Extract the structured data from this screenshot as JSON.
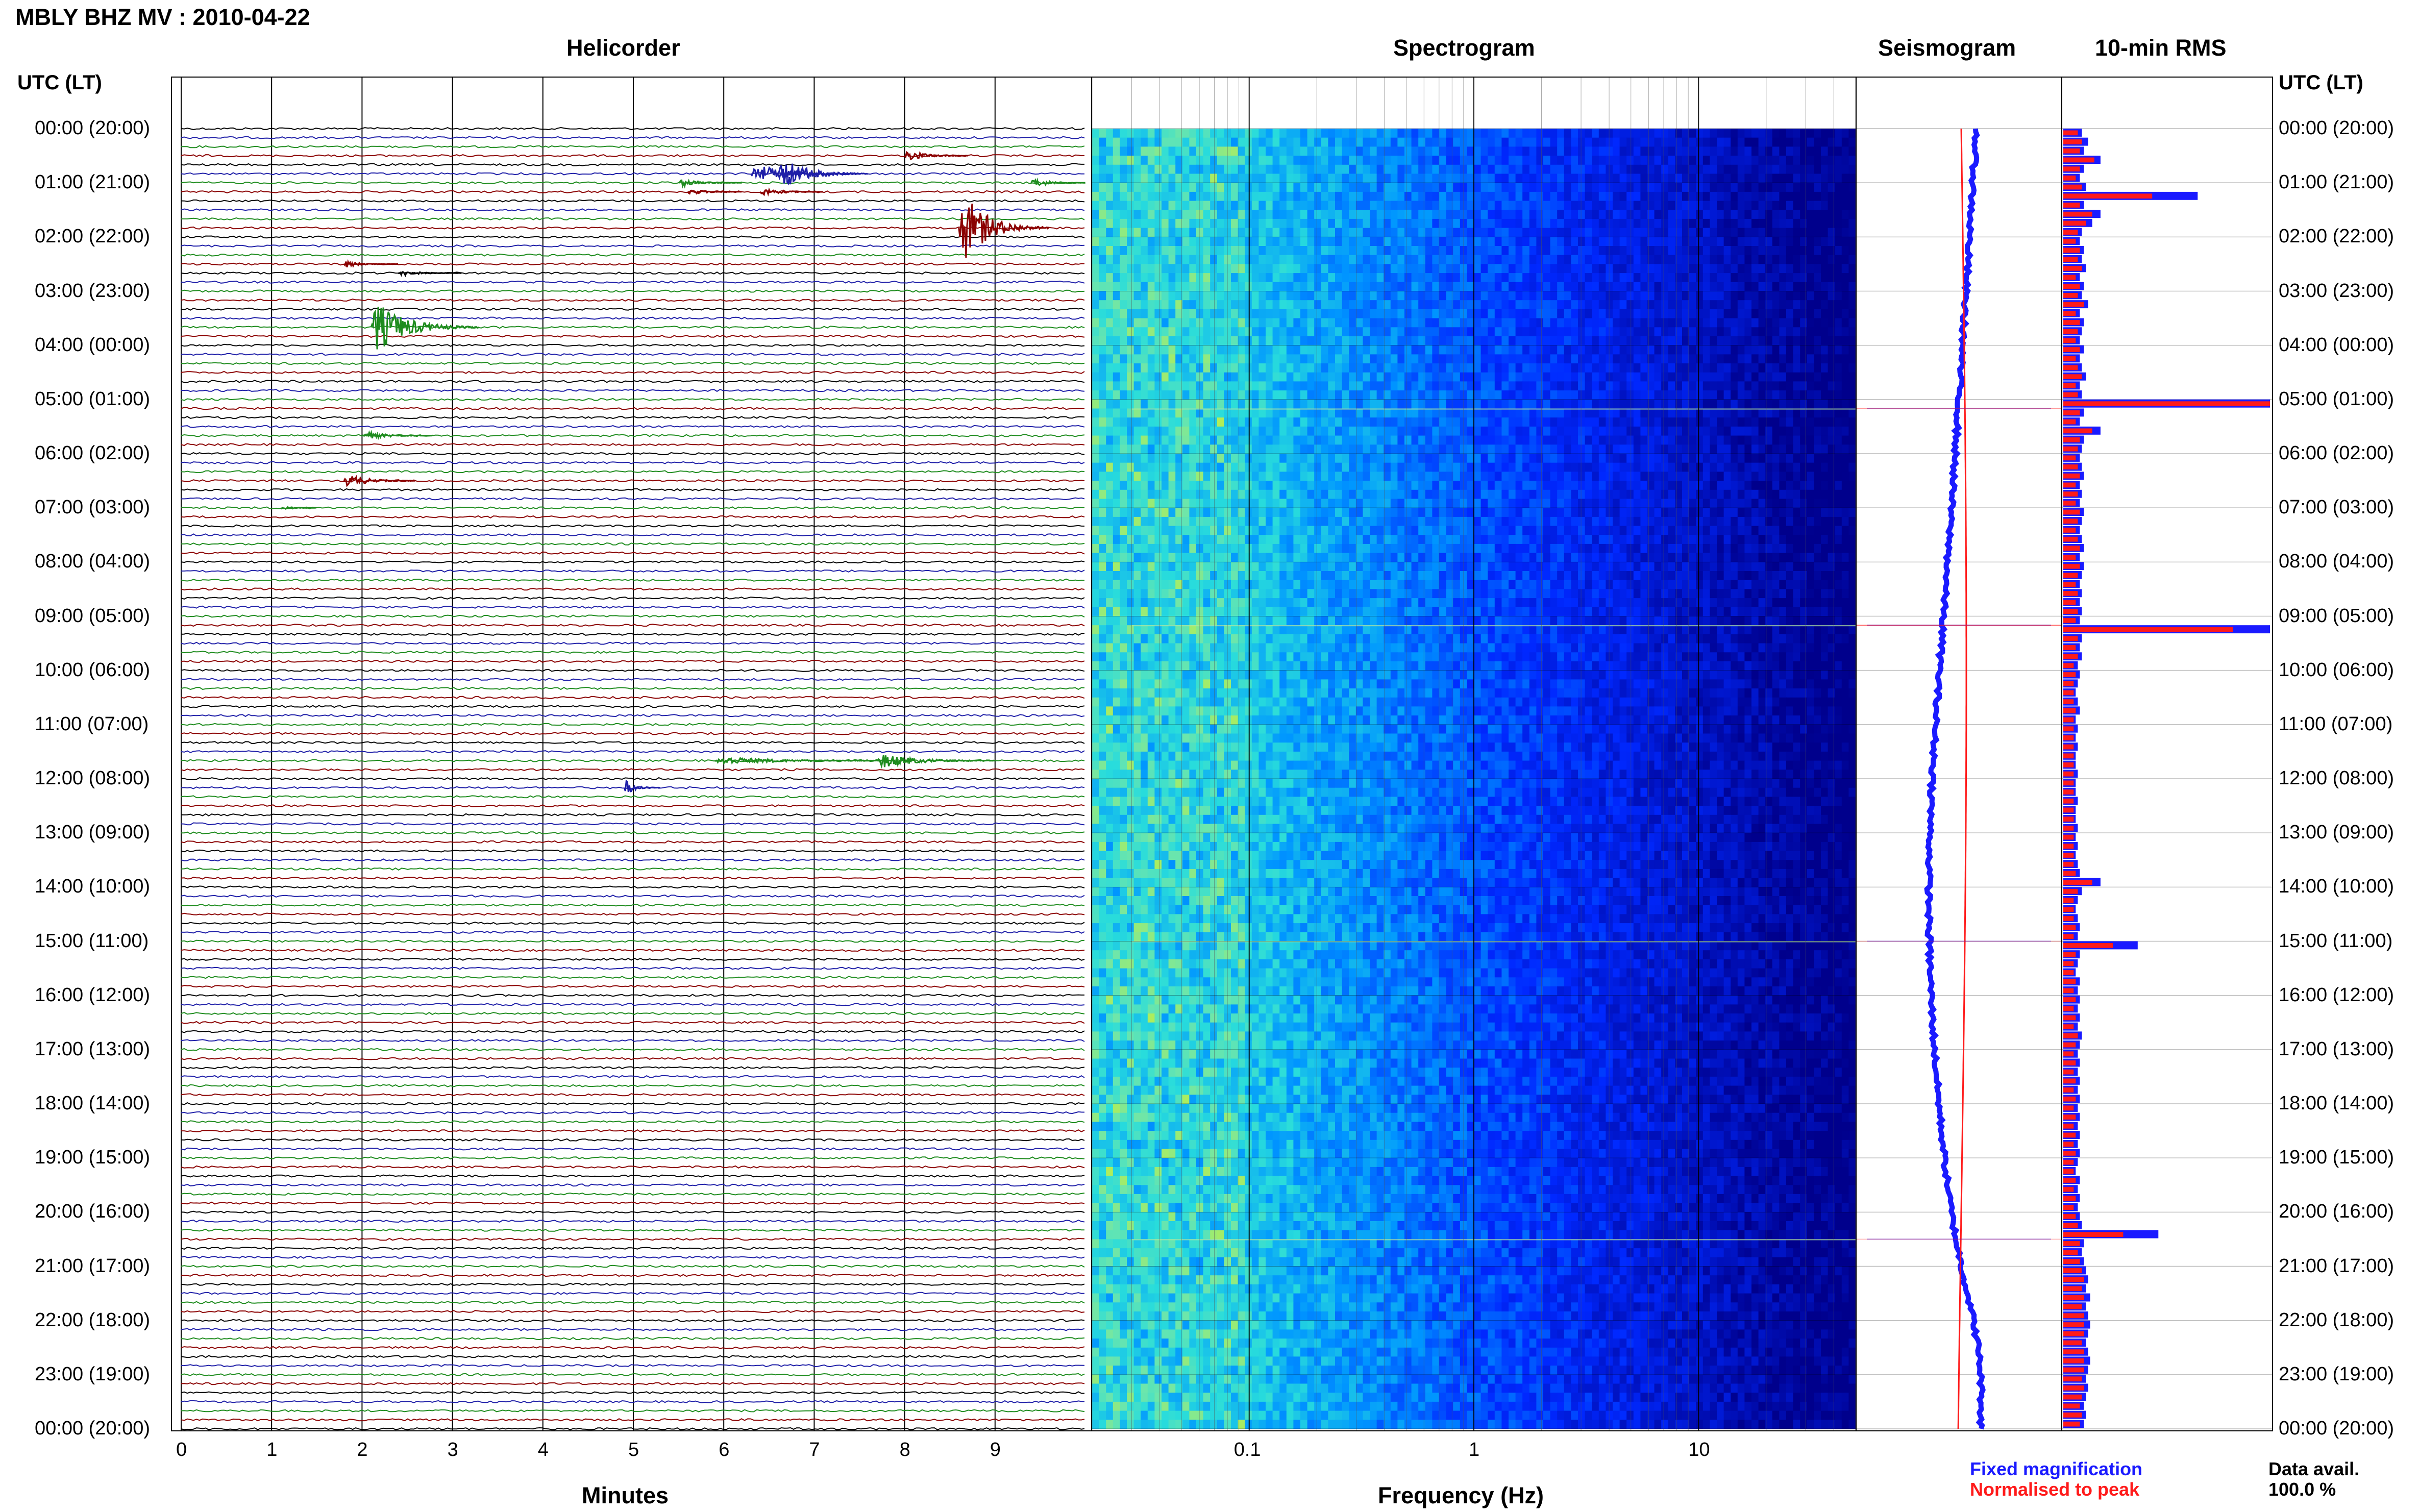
{
  "title": "MBLY BHZ MV : 2010-04-22",
  "utc_header": "UTC (LT)",
  "headers": {
    "helicorder": "Helicorder",
    "spectrogram": "Spectrogram",
    "seismogram": "Seismogram",
    "rms": "10-min RMS"
  },
  "axis_labels": {
    "minutes": "Minutes",
    "frequency": "Frequency (Hz)"
  },
  "legend": {
    "fixed": "Fixed magnification",
    "normalised": "Normalised to peak",
    "fixed_color": "#1a1aff",
    "normalised_color": "#ff1a1a"
  },
  "data_avail": {
    "label": "Data avail.",
    "value": "100.0 %"
  },
  "colors": {
    "trace_cycle": [
      "#000000",
      "#1f1fa8",
      "#1e8c1e",
      "#8b0000"
    ],
    "rms_fixed": "#1a1aff",
    "rms_norm": "#ff1a1a"
  },
  "chart_data": [
    {
      "type": "line",
      "name": "helicorder",
      "title": "Helicorder",
      "xlabel": "Minutes",
      "xlim": [
        0,
        10
      ],
      "x_ticks": [
        "0",
        "1",
        "2",
        "3",
        "4",
        "5",
        "6",
        "7",
        "8",
        "9"
      ],
      "y_ticks": [
        "00:00 (20:00)",
        "01:00 (21:00)",
        "02:00 (22:00)",
        "03:00 (23:00)",
        "04:00 (00:00)",
        "05:00 (01:00)",
        "06:00 (02:00)",
        "07:00 (03:00)",
        "08:00 (04:00)",
        "09:00 (05:00)",
        "10:00 (06:00)",
        "11:00 (07:00)",
        "12:00 (08:00)",
        "13:00 (09:00)",
        "14:00 (10:00)",
        "15:00 (11:00)",
        "16:00 (12:00)",
        "17:00 (13:00)",
        "18:00 (14:00)",
        "19:00 (15:00)",
        "20:00 (16:00)",
        "21:00 (17:00)",
        "22:00 (18:00)",
        "23:00 (19:00)",
        "00:00 (20:00)"
      ],
      "rows_per_hour": 6,
      "events": [
        {
          "row": 3,
          "minute": 8.0,
          "amp": 0.35,
          "dur": 0.7
        },
        {
          "row": 5,
          "minute": 6.3,
          "amp": 0.6,
          "dur": 1.2
        },
        {
          "row": 5,
          "minute": 6.6,
          "amp": 1.0,
          "dur": 1.0
        },
        {
          "row": 6,
          "minute": 5.5,
          "amp": 0.25,
          "dur": 0.7
        },
        {
          "row": 6,
          "minute": 9.4,
          "amp": 0.3,
          "dur": 0.8
        },
        {
          "row": 7,
          "minute": 6.4,
          "amp": 0.25,
          "dur": 0.7
        },
        {
          "row": 7,
          "minute": 5.6,
          "amp": 0.2,
          "dur": 0.6
        },
        {
          "row": 11,
          "minute": 8.6,
          "amp": 2.2,
          "dur": 1.0
        },
        {
          "row": 15,
          "minute": 1.8,
          "amp": 0.2,
          "dur": 0.6
        },
        {
          "row": 16,
          "minute": 2.4,
          "amp": 0.2,
          "dur": 0.7
        },
        {
          "row": 22,
          "minute": 2.1,
          "amp": 1.6,
          "dur": 1.2
        },
        {
          "row": 34,
          "minute": 2.0,
          "amp": 0.25,
          "dur": 0.8
        },
        {
          "row": 39,
          "minute": 1.8,
          "amp": 0.4,
          "dur": 0.8
        },
        {
          "row": 42,
          "minute": 1.1,
          "amp": 0.15,
          "dur": 0.4
        },
        {
          "row": 70,
          "minute": 5.9,
          "amp": 0.25,
          "dur": 2.0
        },
        {
          "row": 70,
          "minute": 7.7,
          "amp": 0.45,
          "dur": 1.3
        },
        {
          "row": 73,
          "minute": 4.9,
          "amp": 0.45,
          "dur": 0.4
        }
      ]
    },
    {
      "type": "heatmap",
      "name": "spectrogram",
      "title": "Spectrogram",
      "xlabel": "Frequency (Hz)",
      "x_scale": "log",
      "xlim": [
        0.02,
        50
      ],
      "x_ticks": [
        "0.1",
        "1",
        "10"
      ],
      "rows": 144
    },
    {
      "type": "line",
      "name": "seismogram",
      "title": "Seismogram"
    },
    {
      "type": "bar",
      "name": "rms",
      "title": "10-min RMS",
      "series": [
        {
          "name": "Fixed magnification",
          "values": [
            0.09,
            0.12,
            0.1,
            0.18,
            0.1,
            0.08,
            0.11,
            0.65,
            0.1,
            0.18,
            0.14,
            0.09,
            0.08,
            0.1,
            0.09,
            0.11,
            0.08,
            0.1,
            0.09,
            0.12,
            0.08,
            0.1,
            0.09,
            0.08,
            0.1,
            0.08,
            0.09,
            0.11,
            0.08,
            0.09,
            1.0,
            0.1,
            0.08,
            0.18,
            0.1,
            0.09,
            0.08,
            0.09,
            0.1,
            0.08,
            0.09,
            0.08,
            0.1,
            0.09,
            0.08,
            0.09,
            0.1,
            0.08,
            0.1,
            0.09,
            0.08,
            0.09,
            0.08,
            0.09,
            0.08,
            1.0,
            0.09,
            0.08,
            0.09,
            0.07,
            0.08,
            0.07,
            0.06,
            0.07,
            0.08,
            0.06,
            0.07,
            0.06,
            0.07,
            0.06,
            0.06,
            0.07,
            0.06,
            0.06,
            0.07,
            0.06,
            0.06,
            0.07,
            0.06,
            0.07,
            0.06,
            0.07,
            0.08,
            0.18,
            0.09,
            0.07,
            0.06,
            0.07,
            0.08,
            0.07,
            0.36,
            0.08,
            0.07,
            0.06,
            0.08,
            0.07,
            0.08,
            0.07,
            0.08,
            0.07,
            0.09,
            0.08,
            0.07,
            0.08,
            0.07,
            0.08,
            0.07,
            0.08,
            0.07,
            0.08,
            0.07,
            0.08,
            0.07,
            0.08,
            0.07,
            0.06,
            0.08,
            0.07,
            0.08,
            0.07,
            0.08,
            0.09,
            0.46,
            0.1,
            0.09,
            0.1,
            0.11,
            0.12,
            0.11,
            0.13,
            0.11,
            0.12,
            0.13,
            0.12,
            0.11,
            0.12,
            0.13,
            0.12,
            0.11,
            0.12,
            0.11,
            0.1,
            0.11,
            0.1
          ]
        },
        {
          "name": "Normalised to peak",
          "values": [
            0.07,
            0.09,
            0.08,
            0.15,
            0.08,
            0.06,
            0.09,
            0.43,
            0.08,
            0.14,
            0.11,
            0.07,
            0.06,
            0.08,
            0.07,
            0.09,
            0.06,
            0.08,
            0.07,
            0.1,
            0.06,
            0.08,
            0.07,
            0.06,
            0.08,
            0.06,
            0.07,
            0.09,
            0.06,
            0.07,
            1.0,
            0.08,
            0.06,
            0.14,
            0.08,
            0.07,
            0.06,
            0.07,
            0.08,
            0.06,
            0.07,
            0.06,
            0.08,
            0.07,
            0.06,
            0.07,
            0.08,
            0.06,
            0.08,
            0.07,
            0.06,
            0.07,
            0.06,
            0.07,
            0.06,
            0.82,
            0.07,
            0.06,
            0.07,
            0.05,
            0.06,
            0.05,
            0.05,
            0.05,
            0.06,
            0.05,
            0.05,
            0.05,
            0.05,
            0.05,
            0.05,
            0.05,
            0.05,
            0.05,
            0.05,
            0.05,
            0.05,
            0.05,
            0.05,
            0.05,
            0.05,
            0.05,
            0.06,
            0.14,
            0.07,
            0.05,
            0.05,
            0.05,
            0.06,
            0.05,
            0.24,
            0.06,
            0.05,
            0.05,
            0.06,
            0.05,
            0.06,
            0.05,
            0.06,
            0.05,
            0.07,
            0.06,
            0.05,
            0.06,
            0.05,
            0.06,
            0.05,
            0.06,
            0.05,
            0.06,
            0.05,
            0.06,
            0.05,
            0.06,
            0.05,
            0.05,
            0.06,
            0.05,
            0.06,
            0.05,
            0.06,
            0.07,
            0.29,
            0.08,
            0.07,
            0.08,
            0.09,
            0.1,
            0.09,
            0.1,
            0.09,
            0.1,
            0.1,
            0.1,
            0.09,
            0.1,
            0.1,
            0.1,
            0.09,
            0.1,
            0.09,
            0.08,
            0.09,
            0.08
          ]
        }
      ]
    }
  ]
}
